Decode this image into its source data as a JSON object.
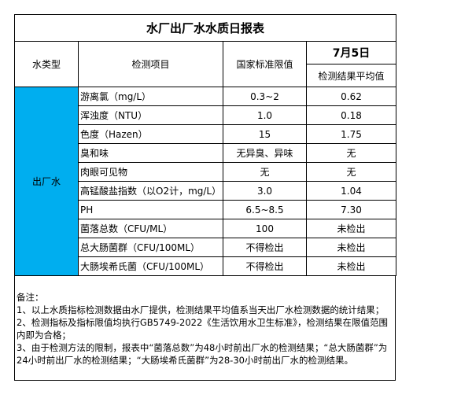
{
  "title": "水厂出厂水水质日报表",
  "headers": {
    "water_type": "水类型",
    "item": "检测项目",
    "standard": "国家标准限值",
    "date": "7月5日",
    "result": "检测结果平均值"
  },
  "water_type": "出厂水",
  "highlight_color": "#00aeef",
  "rows": [
    {
      "item": "游离氯（mg/L）",
      "standard": "0.3~2",
      "result": "0.62"
    },
    {
      "item": "浑浊度（NTU）",
      "standard": "1.0",
      "result": "0.18"
    },
    {
      "item": "色度（Hazen）",
      "standard": "15",
      "result": "1.75"
    },
    {
      "item": "臭和味",
      "standard": "无异臭、异味",
      "result": "无"
    },
    {
      "item": "肉眼可见物",
      "standard": "无",
      "result": "无"
    },
    {
      "item": "高锰酸盐指数（以O2计，mg/L）",
      "standard": "3.0",
      "result": "1.04"
    },
    {
      "item": "PH",
      "standard": "6.5~8.5",
      "result": "7.30"
    },
    {
      "item": "菌落总数（CFU/ML）",
      "standard": "100",
      "result": "未检出"
    },
    {
      "item": "总大肠菌群（CFU/100ML）",
      "standard": "不得检出",
      "result": "未检出"
    },
    {
      "item": "大肠埃希氏菌（CFU/100ML）",
      "standard": "不得检出",
      "result": "未检出"
    }
  ],
  "notes": {
    "heading": "备注：",
    "lines": [
      "1、以上水质指标检测数据由水厂提供，检测结果平均值系当天出厂水检测数据的统计结果；",
      "2、检测指标及指标限值均执行GB5749-2022《生活饮用水卫生标准》，检测结果在限值范围内即为合格；",
      "3、由于检测方法的限制，报表中“菌落总数”为48小时前出厂水的检测结果；“总大肠菌群”为24小时前出厂水的检测结果；“大肠埃希氏菌群”为28-30小时前出厂水的检测结果。"
    ]
  }
}
